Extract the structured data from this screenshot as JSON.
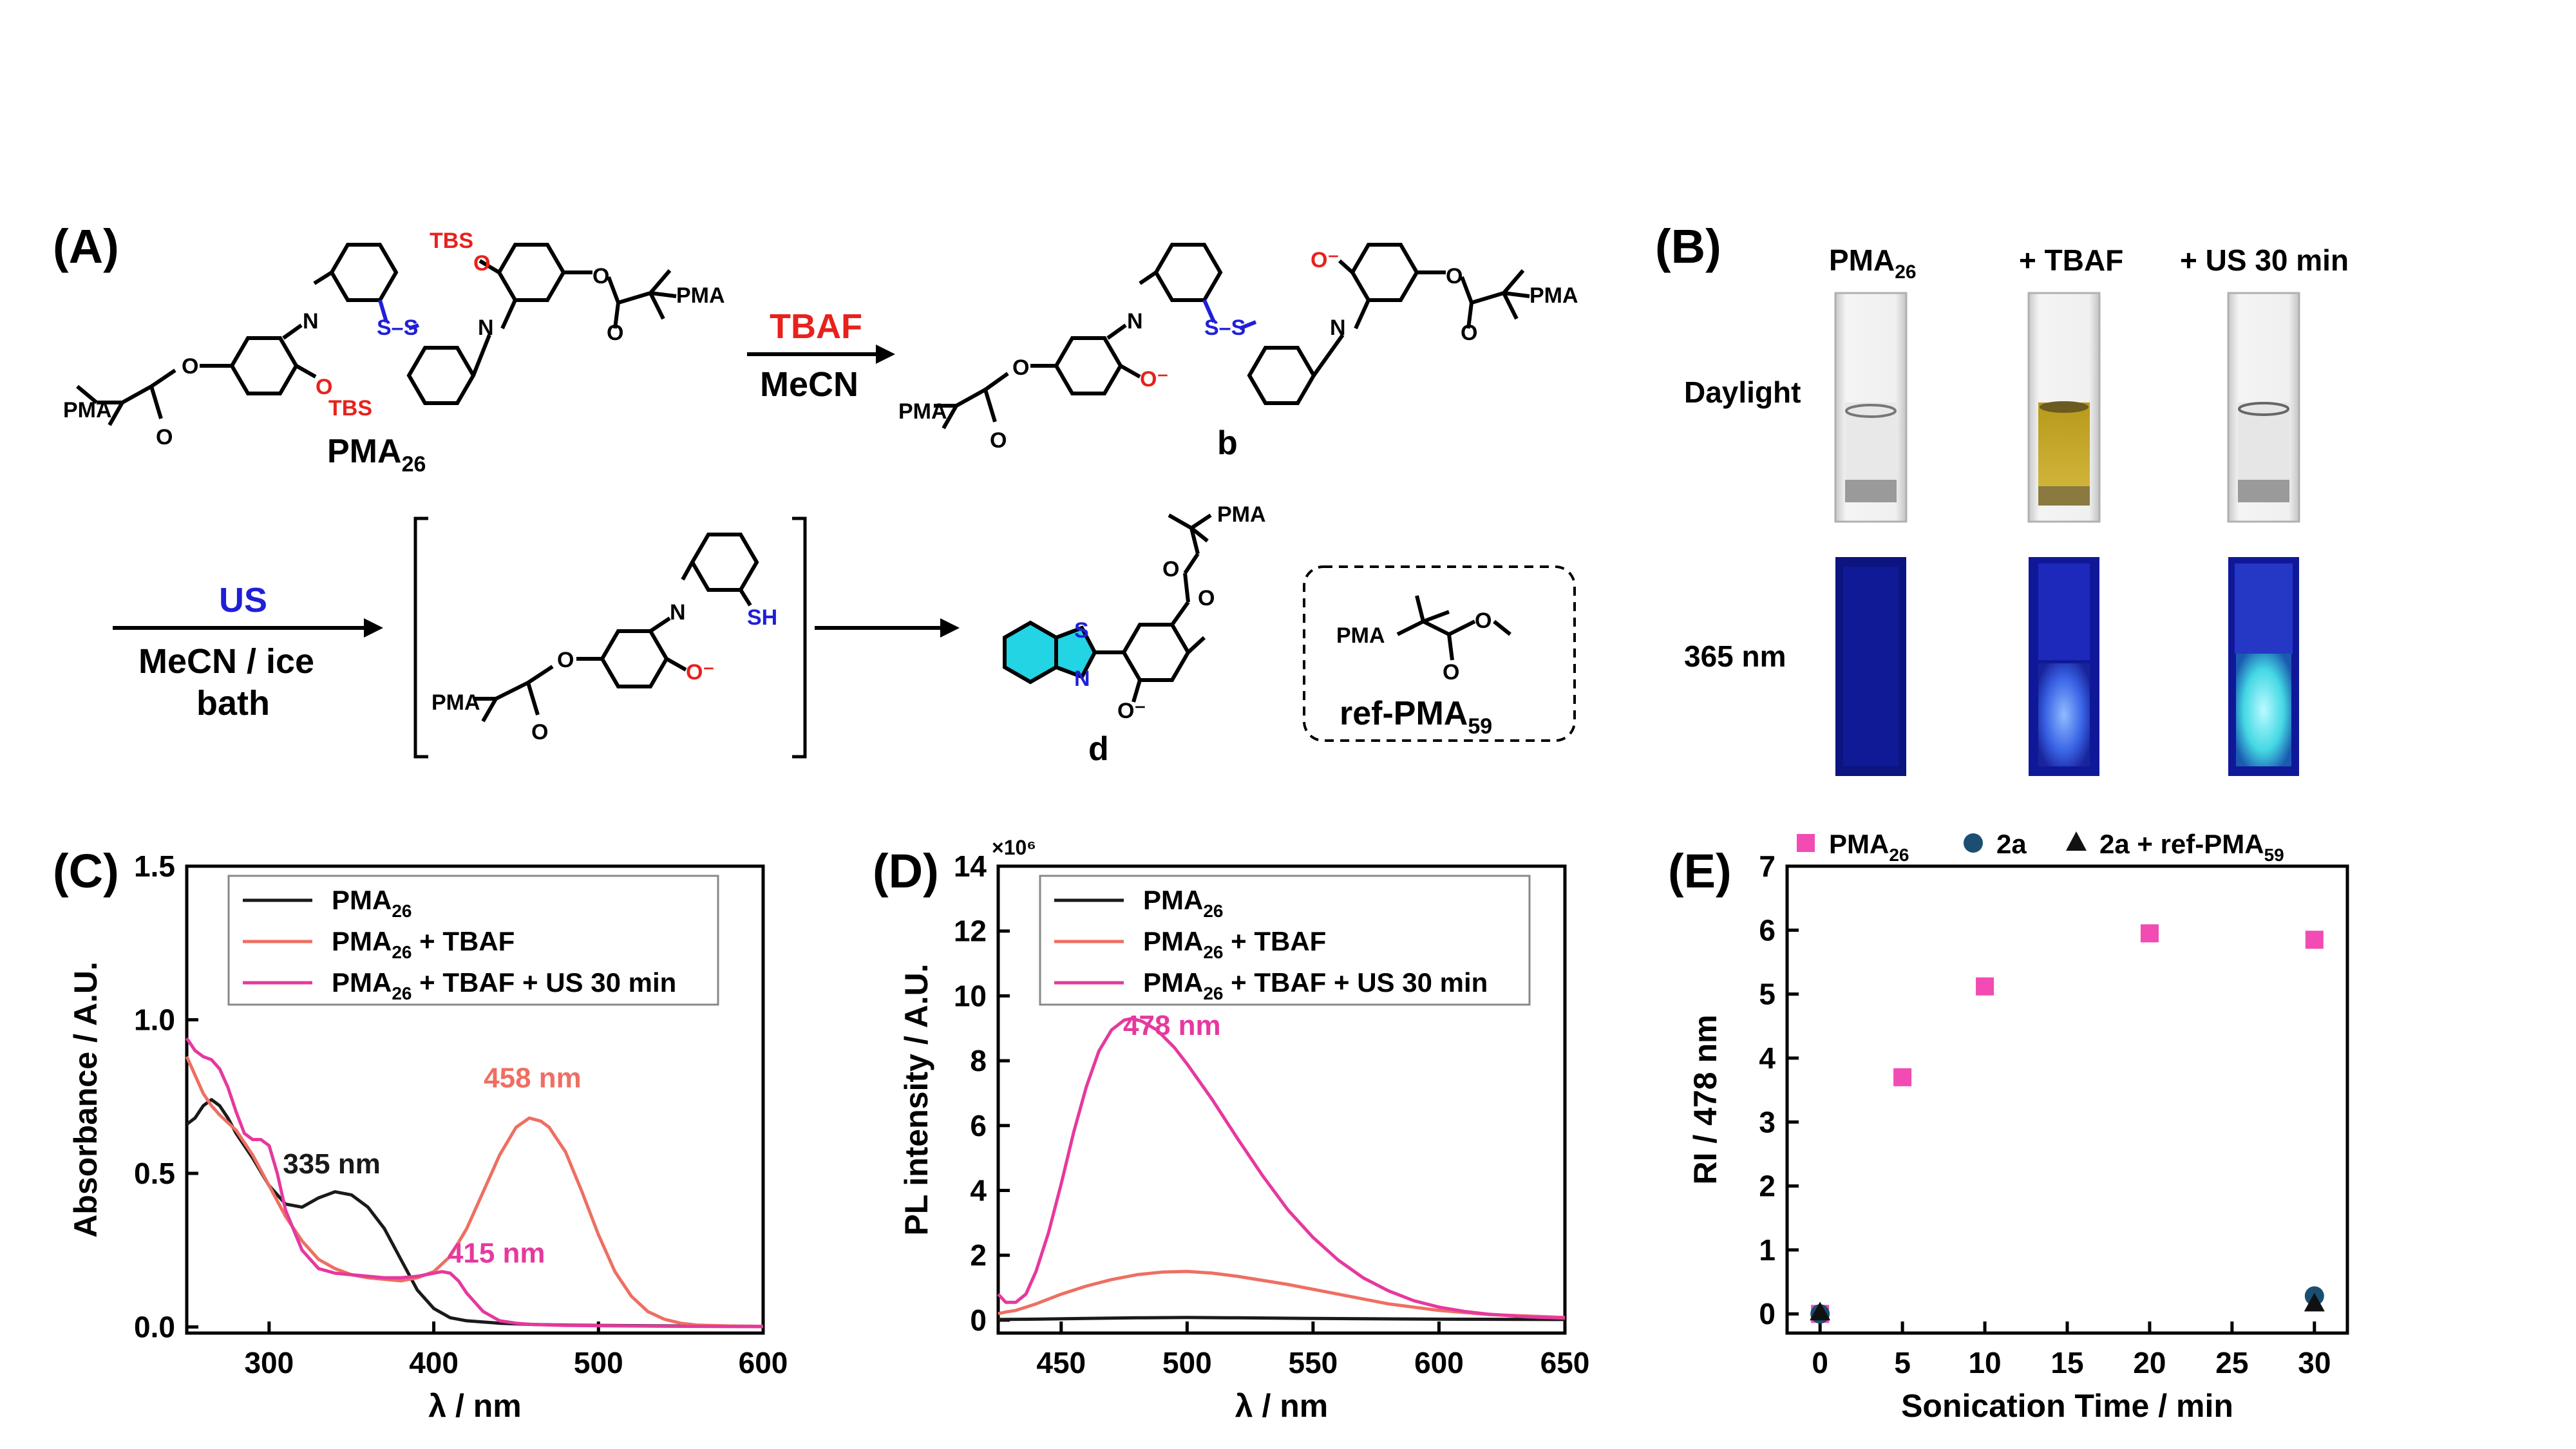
{
  "panel_labels": {
    "a": "(A)",
    "b": "(B)",
    "c": "(C)",
    "d": "(D)",
    "e": "(E)"
  },
  "scheme": {
    "pma26_main": "PMA",
    "pma26_sub": "26",
    "tbs": "TBS",
    "pma": "PMA",
    "o_minus": "O⁻",
    "ss": "S–S",
    "n_imine": "N",
    "o": "O",
    "tbaf": "TBAF",
    "mecn": "MeCN",
    "compound_b": "b",
    "us": "US",
    "mecn_ice_line1": "MeCN / ice",
    "mecn_ice_line2": "bath",
    "sh": "SH",
    "s": "S",
    "compound_d": "d",
    "ref_main": "ref-PMA",
    "ref_sub": "59",
    "colors": {
      "red": "#e8211d",
      "blue": "#1f1fd8",
      "cyan": "#22d4e4"
    }
  },
  "photos": {
    "columns": [
      {
        "label_main": "PMA",
        "label_sub": "26"
      },
      {
        "label_main": "+ TBAF",
        "label_sub": ""
      },
      {
        "label_main": "+ US 30 min",
        "label_sub": ""
      }
    ],
    "rows": [
      "Daylight",
      "365 nm"
    ]
  },
  "chart_data": [
    {
      "panel": "C",
      "type": "line",
      "xlabel": "λ / nm",
      "ylabel": "Absorbance / A.U.",
      "xlim": [
        250,
        600
      ],
      "ylim": [
        -0.02,
        1.5
      ],
      "xticks": [
        300,
        400,
        500,
        600
      ],
      "yticks": [
        0.0,
        0.5,
        1.0,
        1.5
      ],
      "legend": "top",
      "series": [
        {
          "name": "PMA26",
          "legend_main": "PMA",
          "legend_sub": "26",
          "legend_rest": "",
          "color": "#1a1a1a",
          "x": [
            250,
            255,
            260,
            265,
            270,
            275,
            280,
            290,
            300,
            310,
            320,
            330,
            340,
            350,
            360,
            370,
            380,
            390,
            400,
            410,
            420,
            440,
            460,
            480,
            500,
            550,
            600
          ],
          "y": [
            0.66,
            0.68,
            0.72,
            0.74,
            0.72,
            0.68,
            0.63,
            0.55,
            0.46,
            0.4,
            0.39,
            0.42,
            0.44,
            0.43,
            0.39,
            0.32,
            0.22,
            0.12,
            0.06,
            0.03,
            0.02,
            0.012,
            0.008,
            0.006,
            0.005,
            0.003,
            0.002
          ]
        },
        {
          "name": "PMA26 + TBAF",
          "legend_main": "PMA",
          "legend_sub": "26",
          "legend_rest": " + TBAF",
          "color": "#ee6f62",
          "x": [
            250,
            255,
            260,
            265,
            270,
            280,
            290,
            300,
            310,
            320,
            330,
            340,
            350,
            360,
            370,
            380,
            390,
            400,
            410,
            420,
            430,
            440,
            450,
            458,
            465,
            470,
            480,
            490,
            500,
            510,
            520,
            530,
            540,
            550,
            560,
            580,
            600
          ],
          "y": [
            0.88,
            0.82,
            0.76,
            0.72,
            0.69,
            0.64,
            0.56,
            0.46,
            0.36,
            0.28,
            0.22,
            0.19,
            0.17,
            0.16,
            0.155,
            0.15,
            0.16,
            0.18,
            0.23,
            0.32,
            0.44,
            0.56,
            0.65,
            0.68,
            0.67,
            0.65,
            0.57,
            0.44,
            0.3,
            0.18,
            0.1,
            0.05,
            0.025,
            0.012,
            0.006,
            0.003,
            0.002
          ]
        },
        {
          "name": "PMA26 + TBAF + US 30 min",
          "legend_main": "PMA",
          "legend_sub": "26",
          "legend_rest": " + TBAF + US 30 min",
          "color": "#e5399e",
          "x": [
            250,
            255,
            260,
            265,
            270,
            275,
            280,
            285,
            290,
            295,
            300,
            305,
            310,
            320,
            330,
            340,
            350,
            360,
            370,
            380,
            390,
            400,
            405,
            410,
            415,
            420,
            430,
            440,
            450,
            460,
            480,
            500,
            550,
            600
          ],
          "y": [
            0.94,
            0.9,
            0.88,
            0.87,
            0.84,
            0.78,
            0.7,
            0.63,
            0.61,
            0.61,
            0.59,
            0.5,
            0.38,
            0.25,
            0.19,
            0.175,
            0.17,
            0.165,
            0.16,
            0.16,
            0.165,
            0.175,
            0.18,
            0.175,
            0.15,
            0.11,
            0.05,
            0.02,
            0.012,
            0.008,
            0.005,
            0.004,
            0.002,
            0.001
          ]
        }
      ],
      "annotations": [
        {
          "text": "335 nm",
          "x": 338,
          "y": 0.5,
          "color": "#1a1a1a"
        },
        {
          "text": "458 nm",
          "x": 460,
          "y": 0.78,
          "color": "#ee6f62"
        },
        {
          "text": "415 nm",
          "x": 438,
          "y": 0.21,
          "color": "#e5399e"
        }
      ]
    },
    {
      "panel": "D",
      "type": "line",
      "xlabel": "λ / nm",
      "ylabel": "PL intensity / A.U.",
      "multiplier": "×10⁶",
      "xlim": [
        425,
        650
      ],
      "ylim": [
        -0.4,
        14
      ],
      "xticks": [
        450,
        500,
        550,
        600,
        650
      ],
      "yticks": [
        0,
        2,
        4,
        6,
        8,
        10,
        12,
        14
      ],
      "legend": "top",
      "series": [
        {
          "name": "PMA26",
          "legend_main": "PMA",
          "legend_sub": "26",
          "legend_rest": "",
          "color": "#1a1a1a",
          "x": [
            425,
            440,
            460,
            480,
            500,
            520,
            550,
            600,
            650
          ],
          "y": [
            0.02,
            0.03,
            0.05,
            0.07,
            0.08,
            0.07,
            0.05,
            0.03,
            0.02
          ]
        },
        {
          "name": "PMA26 + TBAF",
          "legend_main": "PMA",
          "legend_sub": "26",
          "legend_rest": " + TBAF",
          "color": "#ee6f62",
          "x": [
            425,
            428,
            432,
            440,
            450,
            460,
            470,
            480,
            490,
            500,
            510,
            520,
            540,
            560,
            580,
            600,
            620,
            650
          ],
          "y": [
            0.2,
            0.25,
            0.3,
            0.5,
            0.8,
            1.05,
            1.25,
            1.4,
            1.48,
            1.5,
            1.45,
            1.35,
            1.1,
            0.8,
            0.5,
            0.3,
            0.17,
            0.08
          ]
        },
        {
          "name": "PMA26 + TBAF + US 30 min",
          "legend_main": "PMA",
          "legend_sub": "26",
          "legend_rest": " + TBAF + US 30 min",
          "color": "#e5399e",
          "x": [
            425,
            428,
            432,
            436,
            440,
            445,
            450,
            455,
            460,
            465,
            470,
            475,
            478,
            482,
            488,
            495,
            500,
            510,
            520,
            530,
            540,
            550,
            560,
            570,
            580,
            590,
            600,
            610,
            620,
            635,
            650
          ],
          "y": [
            0.8,
            0.55,
            0.55,
            0.8,
            1.5,
            2.7,
            4.2,
            5.8,
            7.2,
            8.3,
            8.95,
            9.25,
            9.3,
            9.22,
            8.95,
            8.4,
            7.9,
            6.8,
            5.6,
            4.45,
            3.4,
            2.55,
            1.85,
            1.3,
            0.9,
            0.6,
            0.4,
            0.27,
            0.18,
            0.1,
            0.06
          ]
        }
      ],
      "annotations": [
        {
          "text": "478 nm",
          "x": 494,
          "y": 8.8,
          "color": "#e5399e"
        }
      ]
    },
    {
      "panel": "E",
      "type": "scatter",
      "xlabel": "Sonication Time / min",
      "ylabel": "RI / 478 nm",
      "xlim": [
        -2,
        32
      ],
      "ylim": [
        -0.3,
        7
      ],
      "xticks": [
        0,
        5,
        10,
        15,
        20,
        25,
        30
      ],
      "yticks": [
        0,
        1,
        2,
        3,
        4,
        5,
        6,
        7
      ],
      "legend": "top",
      "series": [
        {
          "name": "PMA26",
          "legend_main": "PMA",
          "legend_sub": "26",
          "marker": "square",
          "color": "#f24bb4",
          "x": [
            0,
            5,
            10,
            20,
            30
          ],
          "y": [
            0.0,
            3.7,
            5.12,
            5.95,
            5.85
          ]
        },
        {
          "name": "2a",
          "legend_main": "2a",
          "legend_sub": "",
          "marker": "circle",
          "color": "#1b4f72",
          "x": [
            0,
            30
          ],
          "y": [
            0.0,
            0.28
          ]
        },
        {
          "name": "2a + ref-PMA59",
          "legend_main": "2a + ref-PMA",
          "legend_sub": "59",
          "marker": "triangle",
          "color": "#111111",
          "x": [
            0,
            30
          ],
          "y": [
            0.02,
            0.16
          ]
        }
      ]
    }
  ]
}
